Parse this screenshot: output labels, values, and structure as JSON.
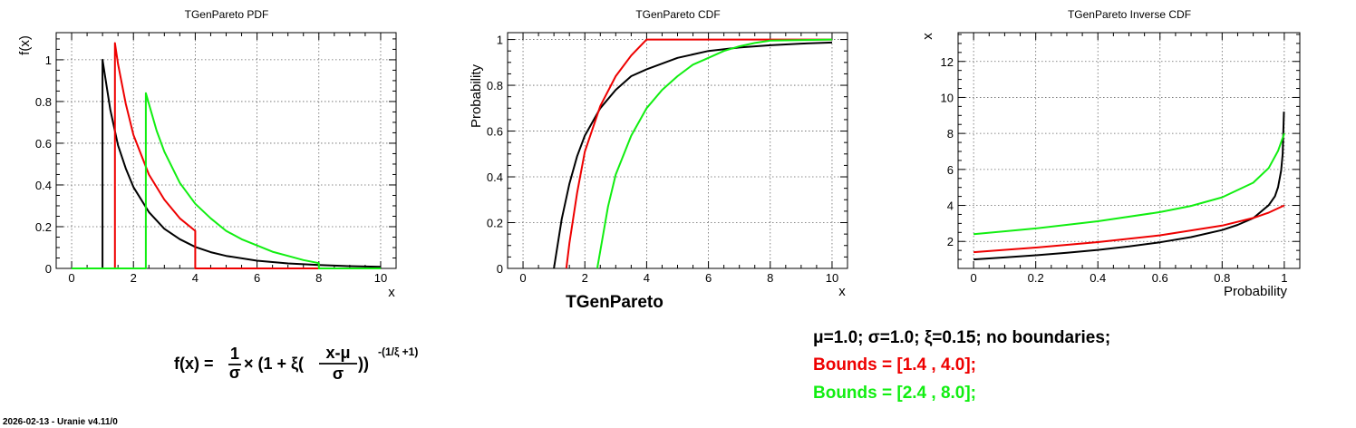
{
  "colors": {
    "black": "#000000",
    "red": "#ee0000",
    "green": "#11ee11",
    "grid": "#666666"
  },
  "chart_data": [
    {
      "type": "line",
      "title": "TGenPareto PDF",
      "xlabel": "x",
      "ylabel": "f(x)",
      "xlim": [
        -0.5,
        10.5
      ],
      "ylim": [
        0,
        1.13
      ],
      "xticks": [
        0,
        2,
        4,
        6,
        8,
        10
      ],
      "xtick_labels": [
        "0",
        "2",
        "4",
        "6",
        "8",
        "10"
      ],
      "yticks": [
        0,
        0.2,
        0.4,
        0.6,
        0.8,
        1
      ],
      "ytick_labels": [
        "0",
        "0.2",
        "0.4",
        "0.6",
        "0.8",
        "1"
      ],
      "grid": true,
      "series": [
        {
          "color": "black",
          "x": [
            0,
            1.0,
            1.0,
            1.25,
            1.5,
            1.75,
            2.0,
            2.5,
            3.0,
            3.5,
            4.0,
            4.5,
            5.0,
            6.0,
            7.0,
            8.0,
            9.0,
            10.0
          ],
          "y": [
            0,
            0,
            1.0,
            0.76,
            0.59,
            0.48,
            0.39,
            0.27,
            0.19,
            0.14,
            0.103,
            0.078,
            0.06,
            0.037,
            0.024,
            0.016,
            0.011,
            0.008
          ]
        },
        {
          "color": "red",
          "x": [
            0,
            1.4,
            1.4,
            1.5,
            1.75,
            2.0,
            2.5,
            3.0,
            3.5,
            4.0,
            4.0,
            10.0
          ],
          "y": [
            0,
            0,
            1.08,
            0.98,
            0.79,
            0.64,
            0.45,
            0.33,
            0.24,
            0.18,
            0,
            0
          ]
        },
        {
          "color": "green",
          "x": [
            0,
            2.4,
            2.4,
            2.75,
            3.0,
            3.5,
            4.0,
            4.5,
            5.0,
            5.5,
            6.0,
            6.5,
            7.0,
            7.5,
            8.0,
            8.0,
            10.0
          ],
          "y": [
            0,
            0,
            0.84,
            0.66,
            0.56,
            0.41,
            0.31,
            0.24,
            0.18,
            0.14,
            0.11,
            0.08,
            0.06,
            0.04,
            0.025,
            0,
            0
          ]
        }
      ]
    },
    {
      "type": "line",
      "title": "TGenPareto CDF",
      "xlabel": "x",
      "ylabel": "Probability",
      "xlim": [
        -0.5,
        10.5
      ],
      "ylim": [
        0,
        1.03
      ],
      "xticks": [
        0,
        2,
        4,
        6,
        8,
        10
      ],
      "xtick_labels": [
        "0",
        "2",
        "4",
        "6",
        "8",
        "10"
      ],
      "yticks": [
        0,
        0.2,
        0.4,
        0.6,
        0.8,
        1
      ],
      "ytick_labels": [
        "0",
        "0.2",
        "0.4",
        "0.6",
        "0.8",
        "1"
      ],
      "grid": true,
      "series": [
        {
          "color": "black",
          "x": [
            1.0,
            1.25,
            1.5,
            1.75,
            2.0,
            2.5,
            3.0,
            3.5,
            4.0,
            5.0,
            6.0,
            7.0,
            8.0,
            9.0,
            10.0
          ],
          "y": [
            0,
            0.215,
            0.37,
            0.49,
            0.58,
            0.7,
            0.78,
            0.84,
            0.87,
            0.92,
            0.95,
            0.965,
            0.975,
            0.982,
            0.987
          ]
        },
        {
          "color": "red",
          "x": [
            1.4,
            1.5,
            1.75,
            2.0,
            2.5,
            3.0,
            3.5,
            4.0,
            10.0
          ],
          "y": [
            0,
            0.11,
            0.33,
            0.51,
            0.71,
            0.84,
            0.93,
            1.0,
            1.0
          ]
        },
        {
          "color": "green",
          "x": [
            2.4,
            2.75,
            3.0,
            3.5,
            4.0,
            4.5,
            5.0,
            5.5,
            6.0,
            6.5,
            7.0,
            7.5,
            8.0,
            10.0
          ],
          "y": [
            0,
            0.27,
            0.41,
            0.58,
            0.7,
            0.78,
            0.84,
            0.89,
            0.92,
            0.95,
            0.97,
            0.985,
            0.995,
            1.0
          ]
        }
      ],
      "caption": "TGenPareto"
    },
    {
      "type": "line",
      "title": "TGenPareto Inverse CDF",
      "xlabel": "Probability",
      "ylabel": "x",
      "xlim": [
        -0.05,
        1.05
      ],
      "ylim": [
        0.5,
        13.6
      ],
      "xticks": [
        0,
        0.2,
        0.4,
        0.6,
        0.8,
        1
      ],
      "xtick_labels": [
        "0",
        "0.2",
        "0.4",
        "0.6",
        "0.8",
        "1"
      ],
      "yticks": [
        2,
        4,
        6,
        8,
        10,
        12
      ],
      "ytick_labels": [
        "2",
        "4",
        "6",
        "8",
        "10",
        "12"
      ],
      "grid": true,
      "series": [
        {
          "color": "black",
          "x": [
            0,
            0.1,
            0.2,
            0.3,
            0.4,
            0.5,
            0.6,
            0.7,
            0.8,
            0.85,
            0.9,
            0.95,
            0.97,
            0.98,
            0.99,
            0.995,
            0.999
          ],
          "y": [
            1.0,
            1.11,
            1.23,
            1.37,
            1.53,
            1.72,
            1.95,
            2.24,
            2.63,
            2.92,
            3.29,
            4.01,
            4.51,
            5.01,
            5.93,
            6.86,
            9.21
          ]
        },
        {
          "color": "red",
          "x": [
            0,
            0.2,
            0.4,
            0.6,
            0.8,
            0.9,
            0.95,
            1.0
          ],
          "y": [
            1.4,
            1.66,
            1.96,
            2.34,
            2.88,
            3.3,
            3.6,
            4.0
          ]
        },
        {
          "color": "green",
          "x": [
            0,
            0.2,
            0.4,
            0.6,
            0.7,
            0.8,
            0.9,
            0.95,
            0.98,
            1.0
          ],
          "y": [
            2.4,
            2.72,
            3.12,
            3.63,
            3.97,
            4.45,
            5.26,
            6.08,
            7.03,
            8.0
          ]
        }
      ]
    }
  ],
  "formula": {
    "lhs": "f(x) = ",
    "frac_num": "1",
    "frac_den": "σ",
    "times": "× (1 + ξ(",
    "inner_num": "x-μ",
    "inner_den": "σ",
    "close": "))",
    "exponent": "-(1/ξ +1)"
  },
  "legend": {
    "black_line": "μ=1.0;  σ=1.0;  ξ=0.15;   no boundaries;",
    "red_line": "Bounds = [1.4 , 4.0];",
    "green_line": "Bounds = [2.4 , 8.0];"
  },
  "footer": "2026-02-13 - Uranie v4.11/0"
}
